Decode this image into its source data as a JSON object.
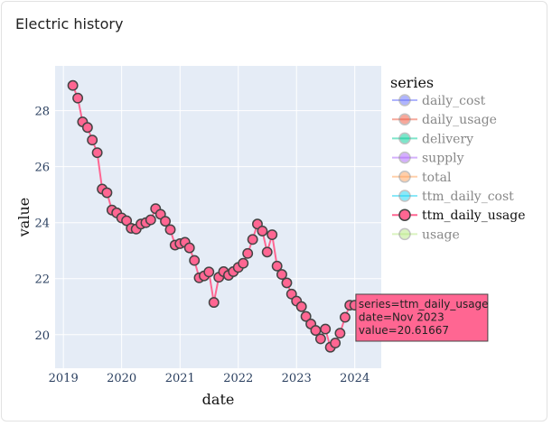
{
  "card": {
    "title": "Electric history"
  },
  "colors": {
    "plot_bg": "#e5ecf6",
    "grid": "#ffffff",
    "line": "#ff6692",
    "marker_edge": "#444444",
    "tooltip_bg": "#ff6692"
  },
  "chart_data": {
    "type": "line",
    "xlabel": "date",
    "ylabel": "value",
    "xlim": [
      "2018-11-10",
      "2024-06-15"
    ],
    "ylim": [
      18.8,
      29.6
    ],
    "x_ticks": [
      "2019",
      "2020",
      "2021",
      "2022",
      "2023",
      "2024"
    ],
    "y_ticks": [
      "20",
      "22",
      "24",
      "26",
      "28"
    ],
    "grid": true,
    "legend": {
      "title": "series",
      "placement": "right",
      "entries": [
        {
          "name": "daily_cost",
          "color": "#636efa",
          "active": false
        },
        {
          "name": "daily_usage",
          "color": "#ef553b",
          "active": false
        },
        {
          "name": "delivery",
          "color": "#00cc96",
          "active": false
        },
        {
          "name": "supply",
          "color": "#ab63fa",
          "active": false
        },
        {
          "name": "total",
          "color": "#ffa15a",
          "active": false
        },
        {
          "name": "ttm_daily_cost",
          "color": "#19d3f3",
          "active": false
        },
        {
          "name": "ttm_daily_usage",
          "color": "#ff6692",
          "active": true
        },
        {
          "name": "usage",
          "color": "#b6e880",
          "active": false
        }
      ]
    },
    "series": [
      {
        "name": "ttm_daily_usage",
        "color": "#ff6692",
        "points": [
          [
            "2019-03-01",
            28.9
          ],
          [
            "2019-04-01",
            28.45
          ],
          [
            "2019-05-01",
            27.6
          ],
          [
            "2019-06-01",
            27.4
          ],
          [
            "2019-07-01",
            26.95
          ],
          [
            "2019-08-01",
            26.5
          ],
          [
            "2019-09-01",
            25.2
          ],
          [
            "2019-10-01",
            25.07
          ],
          [
            "2019-11-01",
            24.45
          ],
          [
            "2019-12-01",
            24.35
          ],
          [
            "2020-01-01",
            24.17
          ],
          [
            "2020-02-01",
            24.07
          ],
          [
            "2020-03-01",
            23.8
          ],
          [
            "2020-04-01",
            23.77
          ],
          [
            "2020-05-01",
            23.95
          ],
          [
            "2020-06-01",
            24.0
          ],
          [
            "2020-07-01",
            24.1
          ],
          [
            "2020-08-01",
            24.5
          ],
          [
            "2020-09-01",
            24.3
          ],
          [
            "2020-10-01",
            24.05
          ],
          [
            "2020-11-01",
            23.75
          ],
          [
            "2020-12-01",
            23.2
          ],
          [
            "2021-01-01",
            23.25
          ],
          [
            "2021-02-01",
            23.3
          ],
          [
            "2021-03-01",
            23.1
          ],
          [
            "2021-04-01",
            22.65
          ],
          [
            "2021-05-01",
            22.03
          ],
          [
            "2021-06-01",
            22.1
          ],
          [
            "2021-07-01",
            22.24
          ],
          [
            "2021-08-01",
            21.15
          ],
          [
            "2021-09-01",
            22.05
          ],
          [
            "2021-10-01",
            22.25
          ],
          [
            "2021-11-01",
            22.12
          ],
          [
            "2021-12-01",
            22.25
          ],
          [
            "2022-01-01",
            22.4
          ],
          [
            "2022-02-01",
            22.55
          ],
          [
            "2022-03-01",
            22.9
          ],
          [
            "2022-04-01",
            23.4
          ],
          [
            "2022-05-01",
            23.95
          ],
          [
            "2022-06-01",
            23.7
          ],
          [
            "2022-07-01",
            22.95
          ],
          [
            "2022-08-01",
            23.57
          ],
          [
            "2022-09-01",
            22.45
          ],
          [
            "2022-10-01",
            22.15
          ],
          [
            "2022-11-01",
            21.85
          ],
          [
            "2022-12-01",
            21.45
          ],
          [
            "2023-01-01",
            21.2
          ],
          [
            "2023-02-01",
            21.0
          ],
          [
            "2023-03-01",
            20.65
          ],
          [
            "2023-04-01",
            20.38
          ],
          [
            "2023-05-01",
            20.15
          ],
          [
            "2023-06-01",
            19.85
          ],
          [
            "2023-07-01",
            20.2
          ],
          [
            "2023-08-01",
            19.55
          ],
          [
            "2023-09-01",
            19.7
          ],
          [
            "2023-10-01",
            20.05
          ],
          [
            "2023-11-01",
            20.62
          ],
          [
            "2023-12-01",
            21.05
          ],
          [
            "2024-01-01",
            21.05
          ]
        ]
      }
    ],
    "tooltip": {
      "lines": [
        "series=ttm_daily_usage",
        "date=Nov 2023",
        "value=20.61667"
      ],
      "point_index": 56
    }
  }
}
